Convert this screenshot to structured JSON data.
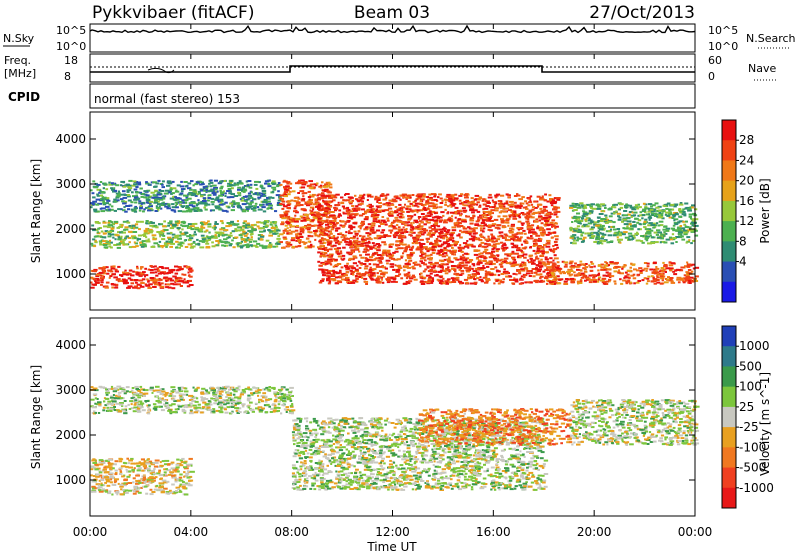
{
  "header": {
    "station": "Pykkvibaer (fitACF)",
    "beam": "Beam 03",
    "date": "27/Oct/2013"
  },
  "strips": {
    "nsky_label": "N.Sky",
    "nsky_top": "10^5",
    "nsky_bottom": "10^0",
    "nsearch_label": "N.Search",
    "nsearch_top": "10^5",
    "nsearch_bottom": "10^0",
    "freq_label_1": "Freq.",
    "freq_label_2": "[MHz]",
    "freq_top": "18",
    "freq_bottom": "8",
    "nave_label": "Nave",
    "nave_top": "60",
    "nave_bottom": "0",
    "cpid_label": "CPID",
    "cpid_text": "normal (fast stereo) 153"
  },
  "chart_data": [
    {
      "type": "heatmap",
      "name": "power",
      "ylabel": "Slant Range [km]",
      "yticks": [
        "1000",
        "2000",
        "3000",
        "4000"
      ],
      "ylim": [
        200,
        4600
      ],
      "colorbar_label": "Power [dB]",
      "colorbar_ticks": [
        "4",
        "8",
        "12",
        "16",
        "20",
        "24",
        "28"
      ],
      "colorbar_colors": [
        "#1a1ae6",
        "#2a4fb4",
        "#2f8c73",
        "#4cb050",
        "#97c83a",
        "#e6a21a",
        "#f07818",
        "#f04214",
        "#e81010"
      ],
      "features": [
        {
          "t0": 0.0,
          "t1": 4.0,
          "r0": 700,
          "r1": 1200,
          "level": 0.9
        },
        {
          "t0": 0.0,
          "t1": 7.5,
          "r0": 1600,
          "r1": 2200,
          "level": 0.45
        },
        {
          "t0": 0.0,
          "t1": 7.5,
          "r0": 2400,
          "r1": 3100,
          "level": 0.3
        },
        {
          "t0": 7.5,
          "t1": 9.5,
          "r0": 1600,
          "r1": 3100,
          "level": 0.8
        },
        {
          "t0": 9.0,
          "t1": 18.5,
          "r0": 800,
          "r1": 2800,
          "level": 0.85
        },
        {
          "t0": 18.0,
          "t1": 24.0,
          "r0": 800,
          "r1": 1300,
          "level": 0.8
        },
        {
          "t0": 19.0,
          "t1": 24.0,
          "r0": 1700,
          "r1": 2600,
          "level": 0.4
        }
      ]
    },
    {
      "type": "heatmap",
      "name": "velocity",
      "ylabel": "Slant Range [km]",
      "yticks": [
        "1000",
        "2000",
        "3000",
        "4000"
      ],
      "ylim": [
        200,
        4600
      ],
      "colorbar_label": "Velocity [m s^-1]",
      "colorbar_ticks": [
        "1000",
        "500",
        "100",
        "25",
        "-25",
        "-100",
        "-500",
        "-1000"
      ],
      "colorbar_colors": [
        "#2040b8",
        "#2e7a8a",
        "#3a9a4a",
        "#7cc63c",
        "#c8c8c0",
        "#e8a020",
        "#f07820",
        "#f04020",
        "#e81818"
      ],
      "features": [
        {
          "t0": 0.0,
          "t1": 4.0,
          "r0": 700,
          "r1": 1500,
          "level": 0.55
        },
        {
          "t0": 0.0,
          "t1": 8.0,
          "r0": 2500,
          "r1": 3100,
          "level": 0.45
        },
        {
          "t0": 8.0,
          "t1": 18.0,
          "r0": 800,
          "r1": 2400,
          "level": 0.45
        },
        {
          "t0": 13.0,
          "t1": 19.0,
          "r0": 1800,
          "r1": 2600,
          "level": 0.7
        },
        {
          "t0": 19.0,
          "t1": 24.0,
          "r0": 1800,
          "r1": 2800,
          "level": 0.45
        }
      ]
    }
  ],
  "time_axis": {
    "ticks": [
      "00:00",
      "04:00",
      "08:00",
      "12:00",
      "16:00",
      "20:00",
      "00:00"
    ],
    "label": "Time UT"
  }
}
